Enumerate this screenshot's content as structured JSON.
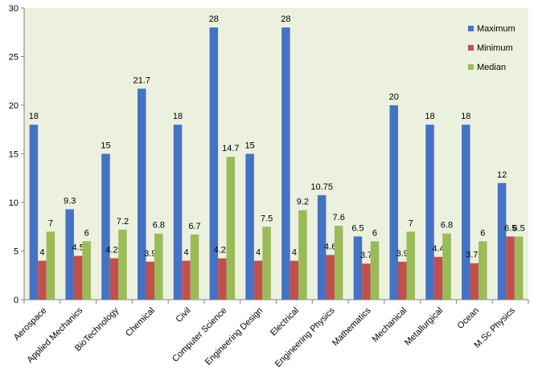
{
  "chart_data": {
    "type": "bar",
    "title": "",
    "xlabel": "",
    "ylabel": "",
    "ylim": [
      0,
      30
    ],
    "yticks": [
      0,
      5,
      10,
      15,
      20,
      25,
      30
    ],
    "grid": false,
    "legend_position": "top-right",
    "categories": [
      "Aerospace",
      "Applied Mechanics",
      "BioTechnology",
      "Chemical",
      "Civil",
      "Computer Science",
      "Engineering Design",
      "Electrical",
      "Engineering Physics",
      "Mathematics",
      "Mechanical",
      "Metallurgical",
      "Ocean",
      "M.Sc Physics"
    ],
    "series": [
      {
        "name": "Maximum",
        "color": "#4472c4",
        "values": [
          18,
          9.3,
          15,
          21.7,
          18,
          28,
          15,
          28,
          10.75,
          6.5,
          20,
          18,
          18,
          12
        ],
        "labels": [
          "18",
          "9.3",
          "15",
          "21.7",
          "18",
          "28",
          "15",
          "28",
          "10.75",
          "6.5",
          "20",
          "18",
          "18",
          "12"
        ]
      },
      {
        "name": "Minimum",
        "color": "#c0504d",
        "values": [
          4,
          4.5,
          4.25,
          3.9,
          4,
          4.25,
          4,
          4,
          4.6,
          3.7,
          3.9,
          4.4,
          3.75,
          6.5
        ],
        "labels": [
          "4",
          "4.5",
          "4.25",
          "3.9",
          "4",
          "4.25",
          "4",
          "4",
          "4.6",
          "3.7",
          "3.9",
          "4.4",
          "3.75",
          "6.5"
        ]
      },
      {
        "name": "Median",
        "color": "#9bbb59",
        "values": [
          7,
          6,
          7.2,
          6.8,
          6.7,
          14.7,
          7.5,
          9.2,
          7.6,
          6,
          7,
          6.8,
          6,
          6.5
        ],
        "labels": [
          "7",
          "6",
          "7.2",
          "6.8",
          "6.7",
          "14.7",
          "7.5",
          "9.2",
          "7.6",
          "6",
          "7",
          "6.8",
          "6",
          "6.5"
        ]
      }
    ]
  }
}
